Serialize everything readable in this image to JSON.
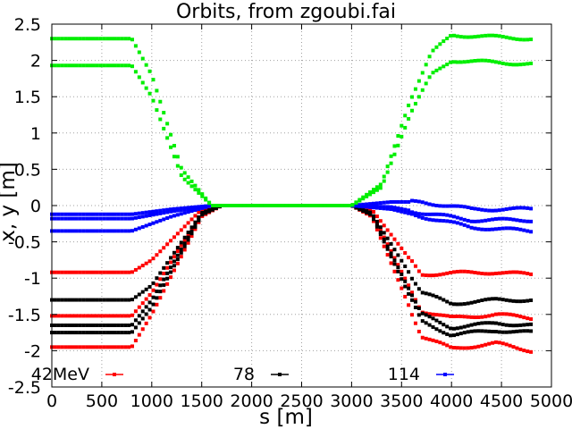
{
  "chart_data": {
    "type": "scatter",
    "title": "Orbits, from zgoubi.fai",
    "xlabel": "s [m]",
    "ylabel": "x, y [m]",
    "xlim": [
      0,
      5000
    ],
    "ylim": [
      -2.5,
      2.5
    ],
    "xticks": [
      0,
      500,
      1000,
      1500,
      2000,
      2500,
      3000,
      3500,
      4000,
      4500,
      5000
    ],
    "yticks": [
      -2.5,
      -2,
      -1.5,
      -1,
      -0.5,
      0,
      0.5,
      1,
      1.5,
      2,
      2.5
    ],
    "xtick_labels": [
      "0",
      "500",
      "1000",
      "1500",
      "2000",
      "2500",
      "3000",
      "3500",
      "4000",
      "4500",
      "5000"
    ],
    "ytick_labels": [
      "-2.5",
      "-2",
      "-1.5",
      "-1",
      "-0.5",
      "0",
      "0.5",
      "1",
      "1.5",
      "2",
      "2.5"
    ],
    "grid": true,
    "legend_position": "bottom",
    "series": [
      {
        "name": "42MeV",
        "color": "#ff0000",
        "x": [
          0,
          100,
          800,
          1000,
          1500,
          1700,
          3000,
          3200,
          3700,
          4000,
          4450,
          4800
        ],
        "y": [
          -0.92,
          -0.92,
          -0.92,
          -0.75,
          -0.05,
          0.0,
          0.0,
          -0.05,
          -0.95,
          -0.93,
          -0.92,
          -0.95
        ]
      },
      {
        "name": "42MeV",
        "color": "#ff0000",
        "x": [
          0,
          100,
          800,
          1000,
          1500,
          1700,
          3000,
          3200,
          3700,
          4000,
          4450,
          4800
        ],
        "y": [
          -1.52,
          -1.52,
          -1.52,
          -1.2,
          -0.1,
          0.0,
          0.0,
          -0.1,
          -1.45,
          -1.55,
          -1.5,
          -1.55
        ]
      },
      {
        "name": "42MeV",
        "color": "#ff0000",
        "x": [
          0,
          100,
          800,
          1000,
          1500,
          1700,
          3000,
          3200,
          3700,
          4000,
          4450,
          4800
        ],
        "y": [
          -1.95,
          -1.95,
          -1.95,
          -1.5,
          -0.15,
          0.0,
          0.0,
          -0.15,
          -1.8,
          -1.97,
          -1.9,
          -2.0
        ]
      },
      {
        "name": "78",
        "color": "#000000",
        "x": [
          0,
          100,
          800,
          1000,
          1500,
          1700,
          3000,
          3200,
          3700,
          4000,
          4450,
          4800
        ],
        "y": [
          -1.3,
          -1.3,
          -1.3,
          -1.1,
          -0.1,
          0.0,
          0.0,
          -0.1,
          -1.2,
          -1.35,
          -1.3,
          -1.3
        ]
      },
      {
        "name": "78",
        "color": "#000000",
        "x": [
          0,
          100,
          800,
          1000,
          1500,
          1700,
          3000,
          3200,
          3700,
          4000,
          4450,
          4800
        ],
        "y": [
          -1.65,
          -1.65,
          -1.65,
          -1.3,
          -0.12,
          0.0,
          0.0,
          -0.12,
          -1.5,
          -1.68,
          -1.62,
          -1.65
        ]
      },
      {
        "name": "78",
        "color": "#000000",
        "x": [
          0,
          100,
          800,
          1000,
          1500,
          1700,
          3000,
          3200,
          3700,
          4000,
          4450,
          4800
        ],
        "y": [
          -1.75,
          -1.75,
          -1.75,
          -1.4,
          -0.13,
          0.0,
          0.0,
          -0.13,
          -1.6,
          -1.78,
          -1.72,
          -1.75
        ]
      },
      {
        "name": "114",
        "color": "#0000ff",
        "x": [
          0,
          100,
          800,
          1200,
          1600,
          3000,
          3400,
          3700,
          4200,
          4800
        ],
        "y": [
          -0.12,
          -0.12,
          -0.12,
          -0.05,
          0.0,
          0.0,
          0.05,
          0.05,
          -0.05,
          -0.05
        ]
      },
      {
        "name": "114",
        "color": "#0000ff",
        "x": [
          0,
          100,
          800,
          1200,
          1600,
          3000,
          3400,
          3700,
          4200,
          4800
        ],
        "y": [
          -0.35,
          -0.35,
          -0.35,
          -0.15,
          0.0,
          0.0,
          -0.05,
          -0.15,
          -0.3,
          -0.35
        ]
      },
      {
        "name": "114",
        "color": "#0000ff",
        "x": [
          0,
          100,
          800,
          1200,
          1600,
          3000,
          3400,
          3700,
          4200,
          4800
        ],
        "y": [
          -0.18,
          -0.18,
          -0.18,
          -0.08,
          0.0,
          0.0,
          -0.02,
          -0.1,
          -0.2,
          -0.2
        ]
      },
      {
        "name": "green",
        "color": "#00ee00",
        "x": [
          0,
          100,
          800,
          1000,
          1300,
          1600,
          3000,
          3300,
          3600,
          3800,
          4000,
          4800
        ],
        "y": [
          2.3,
          2.3,
          2.3,
          1.8,
          0.5,
          0.0,
          0.0,
          0.3,
          1.5,
          2.1,
          2.35,
          2.3
        ]
      },
      {
        "name": "green",
        "color": "#00ee00",
        "x": [
          0,
          100,
          800,
          1000,
          1300,
          1600,
          3000,
          3300,
          3600,
          3800,
          4000,
          4800
        ],
        "y": [
          1.93,
          1.93,
          1.93,
          1.5,
          0.4,
          0.0,
          0.0,
          0.25,
          1.3,
          1.8,
          2.0,
          1.95
        ]
      }
    ],
    "legend": [
      {
        "label": "42MeV",
        "color": "#ff0000"
      },
      {
        "label": "78",
        "color": "#000000"
      },
      {
        "label": "114",
        "color": "#0000ff"
      }
    ]
  }
}
